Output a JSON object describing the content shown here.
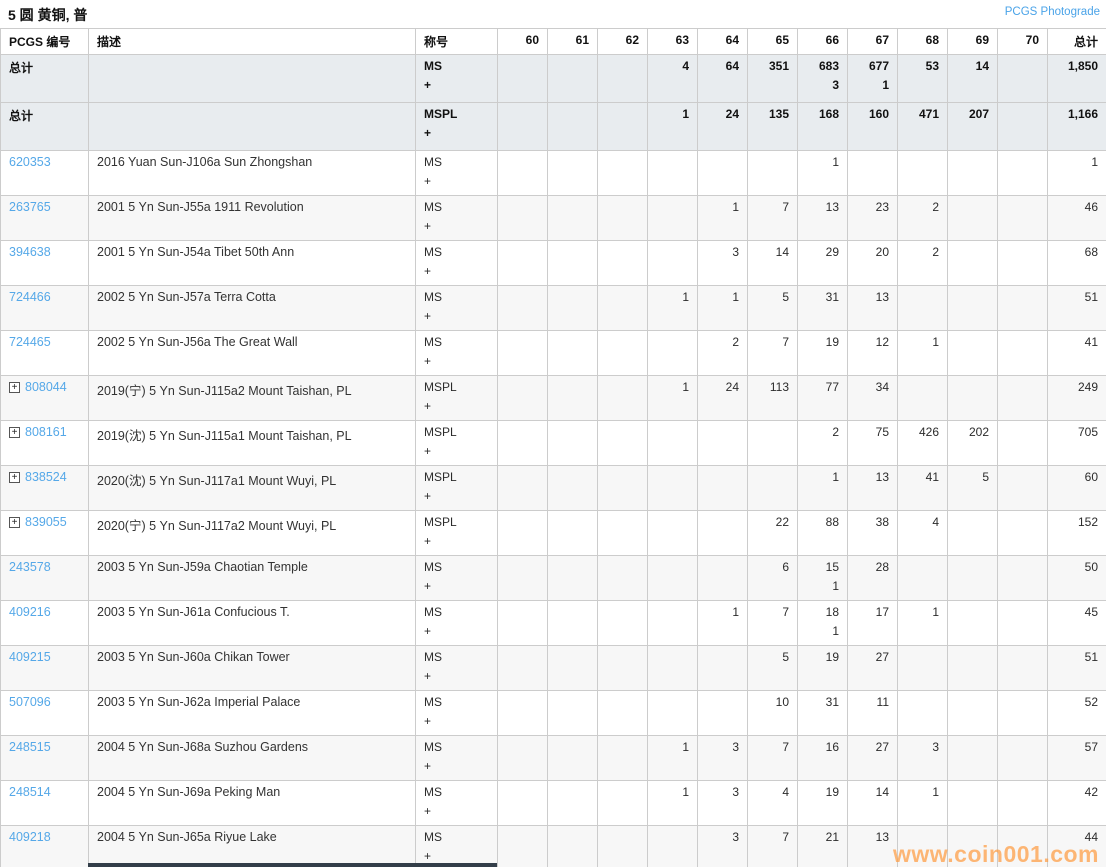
{
  "page": {
    "title": "5 圆 黄铜, 普",
    "photograde_link": "PCGS Photograde",
    "watermark": "www.coin001.com"
  },
  "icons": {
    "expand": "+"
  },
  "table": {
    "header": {
      "pcgs": "PCGS 编号",
      "desc": "描述",
      "desig": "称号",
      "grades": [
        "60",
        "61",
        "62",
        "63",
        "64",
        "65",
        "66",
        "67",
        "68",
        "69",
        "70"
      ],
      "total": "总计"
    },
    "summary_rows": [
      {
        "label": "总计",
        "desig": [
          "MS",
          "+"
        ],
        "counts": [
          "",
          "",
          "",
          "4",
          "64",
          "351",
          "683",
          "677",
          "53",
          "14",
          ""
        ],
        "plus_counts": [
          "",
          "",
          "",
          "",
          "",
          "",
          "3",
          "1",
          "",
          "",
          ""
        ],
        "total": "1,850"
      },
      {
        "label": "总计",
        "desig": [
          "MSPL",
          "+"
        ],
        "counts": [
          "",
          "",
          "",
          "1",
          "24",
          "135",
          "168",
          "160",
          "471",
          "207",
          ""
        ],
        "plus_counts": [
          "",
          "",
          "",
          "",
          "",
          "",
          "",
          "",
          "",
          "",
          ""
        ],
        "total": "1,166"
      }
    ],
    "rows": [
      {
        "id": "620353",
        "expand": false,
        "desc": "2016 Yuan Sun-J106a Sun Zhongshan",
        "desig": [
          "MS",
          "+"
        ],
        "counts": [
          "",
          "",
          "",
          "",
          "",
          "",
          "1",
          "",
          "",
          "",
          ""
        ],
        "plus_counts": [
          "",
          "",
          "",
          "",
          "",
          "",
          "",
          "",
          "",
          "",
          ""
        ],
        "total": "1"
      },
      {
        "id": "263765",
        "expand": false,
        "desc": "2001 5 Yn Sun-J55a 1911 Revolution",
        "desig": [
          "MS",
          "+"
        ],
        "counts": [
          "",
          "",
          "",
          "",
          "1",
          "7",
          "13",
          "23",
          "2",
          "",
          ""
        ],
        "plus_counts": [
          "",
          "",
          "",
          "",
          "",
          "",
          "",
          "",
          "",
          "",
          ""
        ],
        "total": "46"
      },
      {
        "id": "394638",
        "expand": false,
        "desc": "2001 5 Yn Sun-J54a Tibet 50th Ann",
        "desig": [
          "MS",
          "+"
        ],
        "counts": [
          "",
          "",
          "",
          "",
          "3",
          "14",
          "29",
          "20",
          "2",
          "",
          ""
        ],
        "plus_counts": [
          "",
          "",
          "",
          "",
          "",
          "",
          "",
          "",
          "",
          "",
          ""
        ],
        "total": "68"
      },
      {
        "id": "724466",
        "expand": false,
        "desc": "2002 5 Yn Sun-J57a Terra Cotta",
        "desig": [
          "MS",
          "+"
        ],
        "counts": [
          "",
          "",
          "",
          "1",
          "1",
          "5",
          "31",
          "13",
          "",
          "",
          ""
        ],
        "plus_counts": [
          "",
          "",
          "",
          "",
          "",
          "",
          "",
          "",
          "",
          "",
          ""
        ],
        "total": "51"
      },
      {
        "id": "724465",
        "expand": false,
        "desc": "2002 5 Yn Sun-J56a The Great Wall",
        "desig": [
          "MS",
          "+"
        ],
        "counts": [
          "",
          "",
          "",
          "",
          "2",
          "7",
          "19",
          "12",
          "1",
          "",
          ""
        ],
        "plus_counts": [
          "",
          "",
          "",
          "",
          "",
          "",
          "",
          "",
          "",
          "",
          ""
        ],
        "total": "41"
      },
      {
        "id": "808044",
        "expand": true,
        "desc": "2019(宁) 5 Yn Sun-J115a2 Mount Taishan, PL",
        "desig": [
          "MSPL",
          "+"
        ],
        "counts": [
          "",
          "",
          "",
          "1",
          "24",
          "113",
          "77",
          "34",
          "",
          "",
          ""
        ],
        "plus_counts": [
          "",
          "",
          "",
          "",
          "",
          "",
          "",
          "",
          "",
          "",
          ""
        ],
        "total": "249"
      },
      {
        "id": "808161",
        "expand": true,
        "desc": "2019(沈) 5 Yn Sun-J115a1 Mount Taishan, PL",
        "desig": [
          "MSPL",
          "+"
        ],
        "counts": [
          "",
          "",
          "",
          "",
          "",
          "",
          "2",
          "75",
          "426",
          "202",
          ""
        ],
        "plus_counts": [
          "",
          "",
          "",
          "",
          "",
          "",
          "",
          "",
          "",
          "",
          ""
        ],
        "total": "705"
      },
      {
        "id": "838524",
        "expand": true,
        "desc": "2020(沈) 5 Yn Sun-J117a1 Mount Wuyi, PL",
        "desig": [
          "MSPL",
          "+"
        ],
        "counts": [
          "",
          "",
          "",
          "",
          "",
          "",
          "1",
          "13",
          "41",
          "5",
          ""
        ],
        "plus_counts": [
          "",
          "",
          "",
          "",
          "",
          "",
          "",
          "",
          "",
          "",
          ""
        ],
        "total": "60"
      },
      {
        "id": "839055",
        "expand": true,
        "desc": "2020(宁) 5 Yn Sun-J117a2 Mount Wuyi, PL",
        "desig": [
          "MSPL",
          "+"
        ],
        "counts": [
          "",
          "",
          "",
          "",
          "",
          "22",
          "88",
          "38",
          "4",
          "",
          ""
        ],
        "plus_counts": [
          "",
          "",
          "",
          "",
          "",
          "",
          "",
          "",
          "",
          "",
          ""
        ],
        "total": "152"
      },
      {
        "id": "243578",
        "expand": false,
        "desc": "2003 5 Yn Sun-J59a Chaotian Temple",
        "desig": [
          "MS",
          "+"
        ],
        "counts": [
          "",
          "",
          "",
          "",
          "",
          "6",
          "15",
          "28",
          "",
          "",
          ""
        ],
        "plus_counts": [
          "",
          "",
          "",
          "",
          "",
          "",
          "1",
          "",
          "",
          "",
          ""
        ],
        "total": "50"
      },
      {
        "id": "409216",
        "expand": false,
        "desc": "2003 5 Yn Sun-J61a Confucious T.",
        "desig": [
          "MS",
          "+"
        ],
        "counts": [
          "",
          "",
          "",
          "",
          "1",
          "7",
          "18",
          "17",
          "1",
          "",
          ""
        ],
        "plus_counts": [
          "",
          "",
          "",
          "",
          "",
          "",
          "1",
          "",
          "",
          "",
          ""
        ],
        "total": "45"
      },
      {
        "id": "409215",
        "expand": false,
        "desc": "2003 5 Yn Sun-J60a Chikan Tower",
        "desig": [
          "MS",
          "+"
        ],
        "counts": [
          "",
          "",
          "",
          "",
          "",
          "5",
          "19",
          "27",
          "",
          "",
          ""
        ],
        "plus_counts": [
          "",
          "",
          "",
          "",
          "",
          "",
          "",
          "",
          "",
          "",
          ""
        ],
        "total": "51"
      },
      {
        "id": "507096",
        "expand": false,
        "desc": "2003 5 Yn Sun-J62a Imperial Palace",
        "desig": [
          "MS",
          "+"
        ],
        "counts": [
          "",
          "",
          "",
          "",
          "",
          "10",
          "31",
          "11",
          "",
          "",
          ""
        ],
        "plus_counts": [
          "",
          "",
          "",
          "",
          "",
          "",
          "",
          "",
          "",
          "",
          ""
        ],
        "total": "52"
      },
      {
        "id": "248515",
        "expand": false,
        "desc": "2004 5 Yn Sun-J68a Suzhou Gardens",
        "desig": [
          "MS",
          "+"
        ],
        "counts": [
          "",
          "",
          "",
          "1",
          "3",
          "7",
          "16",
          "27",
          "3",
          "",
          ""
        ],
        "plus_counts": [
          "",
          "",
          "",
          "",
          "",
          "",
          "",
          "",
          "",
          "",
          ""
        ],
        "total": "57"
      },
      {
        "id": "248514",
        "expand": false,
        "desc": "2004 5 Yn Sun-J69a Peking Man",
        "desig": [
          "MS",
          "+"
        ],
        "counts": [
          "",
          "",
          "",
          "1",
          "3",
          "4",
          "19",
          "14",
          "1",
          "",
          ""
        ],
        "plus_counts": [
          "",
          "",
          "",
          "",
          "",
          "",
          "",
          "",
          "",
          "",
          ""
        ],
        "total": "42"
      },
      {
        "id": "409218",
        "expand": false,
        "desc": "2004 5 Yn Sun-J65a Riyue Lake",
        "desig": [
          "MS",
          "+"
        ],
        "counts": [
          "",
          "",
          "",
          "",
          "3",
          "7",
          "21",
          "13",
          "",
          "",
          ""
        ],
        "plus_counts": [
          "",
          "",
          "",
          "",
          "",
          "",
          "",
          "",
          "",
          "",
          ""
        ],
        "total": "44"
      }
    ]
  },
  "colors": {
    "link_blue": "#55a8e8",
    "summary_bg": "#e8ecef",
    "row_shade": "#f7f7f7",
    "border": "#cccccc",
    "watermark_orange": "#ff9d42"
  }
}
